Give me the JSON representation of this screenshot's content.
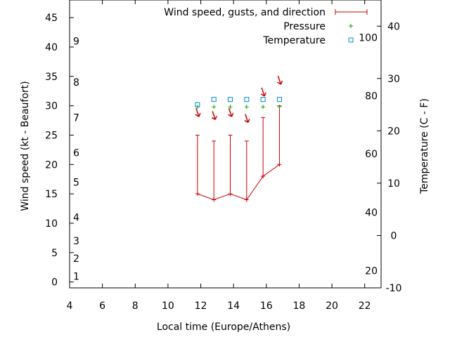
{
  "chart_data": {
    "type": "line",
    "xlabel": "Local time (Europe/Athens)",
    "ylabel": "Wind speed (kt - Beaufort)",
    "y2label": "Temperature (C - F)",
    "xlim": [
      4,
      23
    ],
    "ylim": [
      -1,
      48
    ],
    "y2lim": [
      -10,
      45
    ],
    "x_ticks": [
      4,
      6,
      8,
      10,
      12,
      14,
      16,
      18,
      20,
      22
    ],
    "y_ticks": [
      0,
      5,
      10,
      15,
      20,
      25,
      30,
      35,
      40,
      45
    ],
    "y2_ticks": [
      -10,
      0,
      10,
      20,
      30,
      40
    ],
    "beaufort_labels": [
      {
        "label": "1",
        "y": 1
      },
      {
        "label": "2",
        "y": 4
      },
      {
        "label": "3",
        "y": 7
      },
      {
        "label": "4",
        "y": 11
      },
      {
        "label": "5",
        "y": 17
      },
      {
        "label": "6",
        "y": 22
      },
      {
        "label": "7",
        "y": 28
      },
      {
        "label": "8",
        "y": 34
      },
      {
        "label": "9",
        "y": 41
      }
    ],
    "fahrenheit_labels": [
      {
        "label": "20",
        "y2": -6.7
      },
      {
        "label": "40",
        "y2": 4.4
      },
      {
        "label": "60",
        "y2": 15.6
      },
      {
        "label": "80",
        "y2": 26.7
      },
      {
        "label": "100",
        "y2": 37.8
      }
    ],
    "legend": [
      {
        "name": "Wind speed, gusts, and direction",
        "marker": "errorbar",
        "color": "#cc0000"
      },
      {
        "name": "Pressure",
        "marker": "plus",
        "color": "#00aa00"
      },
      {
        "name": "Temperature",
        "marker": "square",
        "color": "#0088cc"
      }
    ],
    "wind": [
      {
        "x": 11.8,
        "speed": 15,
        "gust": 25,
        "arrow_y": 28.5
      },
      {
        "x": 12.8,
        "speed": 14,
        "gust": 24,
        "arrow_y": 28.0
      },
      {
        "x": 13.8,
        "speed": 15,
        "gust": 25,
        "arrow_y": 28.5
      },
      {
        "x": 14.8,
        "speed": 14,
        "gust": 24,
        "arrow_y": 27.5
      },
      {
        "x": 15.8,
        "speed": 18,
        "gust": 28,
        "arrow_y": 32.0
      },
      {
        "x": 16.8,
        "speed": 20,
        "gust": 30,
        "arrow_y": 34.0
      }
    ],
    "pressure": [
      {
        "x": 11.8,
        "y": 29.8
      },
      {
        "x": 12.8,
        "y": 29.8
      },
      {
        "x": 13.8,
        "y": 29.8
      },
      {
        "x": 14.8,
        "y": 29.8
      },
      {
        "x": 15.8,
        "y": 29.8
      },
      {
        "x": 16.8,
        "y": 29.8
      }
    ],
    "temperature": [
      {
        "x": 11.8,
        "y2": 25
      },
      {
        "x": 12.8,
        "y2": 26
      },
      {
        "x": 13.8,
        "y2": 26
      },
      {
        "x": 14.8,
        "y2": 26
      },
      {
        "x": 15.8,
        "y2": 26
      },
      {
        "x": 16.8,
        "y2": 26
      }
    ]
  }
}
